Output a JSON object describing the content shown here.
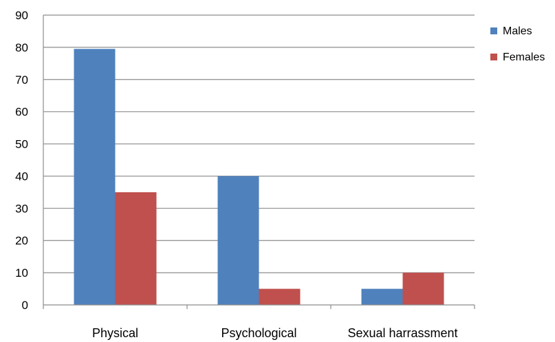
{
  "chart_data": {
    "type": "bar",
    "categories": [
      "Physical",
      "Psychological",
      "Sexual harrassment"
    ],
    "series": [
      {
        "name": "Males",
        "values": [
          79.5,
          40,
          5
        ],
        "color": "#4f81bd"
      },
      {
        "name": "Females",
        "values": [
          35,
          5,
          10
        ],
        "color": "#c0504d"
      }
    ],
    "yticks": [
      "0",
      "10",
      "20",
      "30",
      "40",
      "50",
      "60",
      "70",
      "80",
      "90"
    ],
    "ylim": [
      0,
      90
    ],
    "grid": true,
    "legend": "right"
  }
}
